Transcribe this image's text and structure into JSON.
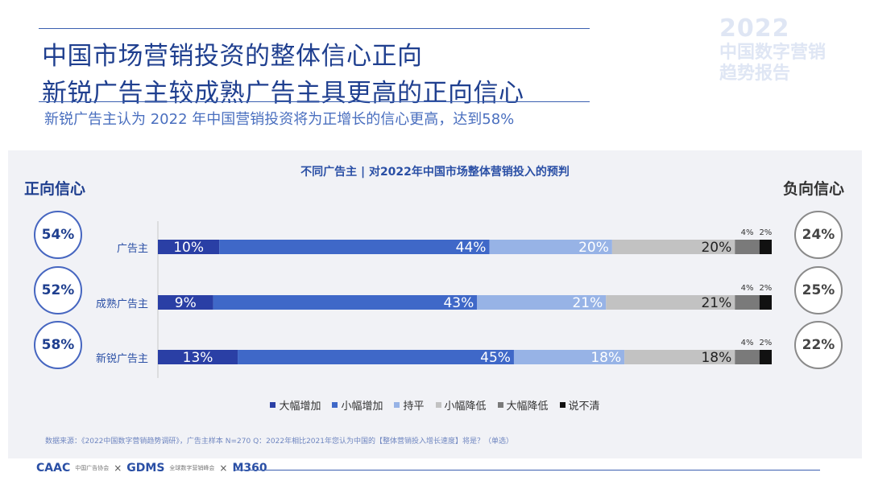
{
  "header": {
    "title_line1": "中国市场营销投资的整体信心正向",
    "title_line2": "新锐广告主较成熟广告主具更高的正向信心",
    "subtitle": "新锐广告主认为 2022 年中国营销投资将为正增长的信心更高，达到58%"
  },
  "watermark": {
    "year": "2022",
    "line1": "中国数字营销",
    "line2": "趋势报告"
  },
  "panel": {
    "positive_label": "正向信心",
    "negative_label": "负向信心"
  },
  "chart_data": {
    "type": "bar",
    "orientation": "horizontal-stacked-100",
    "title": "不同广告主 | 对2022年中国市场整体营销投入的预判",
    "categories": [
      "广告主",
      "成熟广告主",
      "新锐广告主"
    ],
    "series": [
      {
        "name": "大幅增加",
        "color": "#2a3fa5",
        "values": [
          10,
          9,
          13
        ]
      },
      {
        "name": "小幅增加",
        "color": "#3f68c8",
        "values": [
          44,
          43,
          45
        ]
      },
      {
        "name": "持平",
        "color": "#97b3e6",
        "values": [
          20,
          21,
          18
        ]
      },
      {
        "name": "小幅降低",
        "color": "#c2c2c2",
        "values": [
          20,
          21,
          18
        ]
      },
      {
        "name": "大幅降低",
        "color": "#7a7a7a",
        "values": [
          4,
          4,
          4
        ]
      },
      {
        "name": "说不清",
        "color": "#111111",
        "values": [
          2,
          2,
          2
        ]
      }
    ],
    "positive_totals": [
      "54%",
      "52%",
      "58%"
    ],
    "negative_totals": [
      "24%",
      "25%",
      "22%"
    ],
    "xlim": [
      0,
      100
    ],
    "legend_position": "bottom"
  },
  "footer": {
    "source": "数据来源：《2022中国数字营销趋势调研》，广告主样本 N=270    Q：2022年相比2021年您认为中国的【整体营销投入增长速度】将是？（单选）",
    "logo1": "CAAC",
    "logo1_small": "中国广告协会",
    "logo2": "GDMS",
    "logo2_small": "全球数字营销峰会",
    "logo3": "M360",
    "separator": "×"
  }
}
